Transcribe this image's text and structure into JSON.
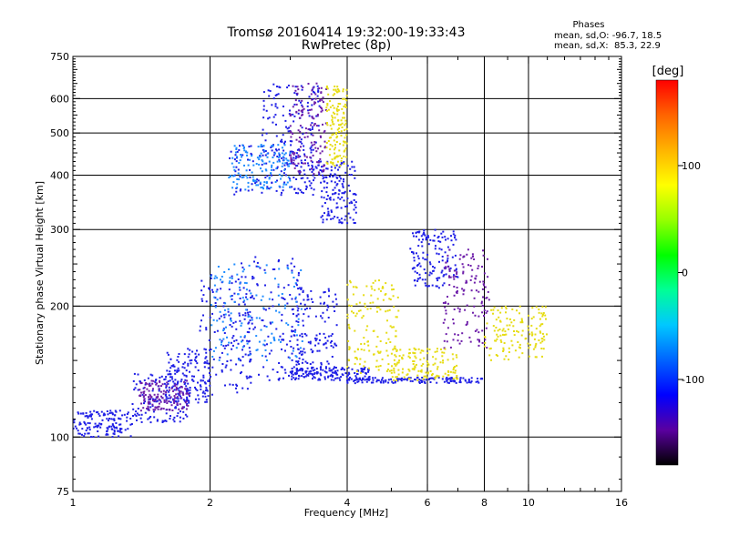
{
  "chart_data": {
    "type": "scatter",
    "title": "Tromsø 20160414 19:32:00-19:33:43",
    "subtitle": "RwPretec (8p)",
    "xlabel": "Frequency [MHz]",
    "ylabel": "Stationary phase Virtual Height [km]",
    "x_scale": "log",
    "y_scale": "log",
    "xlim": [
      1,
      16
    ],
    "ylim": [
      75,
      750
    ],
    "x_ticks": [
      1,
      2,
      4,
      6,
      8,
      10,
      16
    ],
    "y_ticks": [
      75,
      100,
      200,
      300,
      400,
      500,
      600,
      750
    ],
    "grid": true,
    "phase_info": {
      "heading": "Phases",
      "line_o": "mean, sd,O: -96.7, 18.5",
      "line_x": "mean, sd,X:  85.3, 22.9"
    },
    "colorbar": {
      "label": "[deg]",
      "range": [
        -180,
        180
      ],
      "ticks": [
        100,
        0,
        -100
      ],
      "colors": [
        "#000000",
        "#5a00a0",
        "#0000ff",
        "#0064ff",
        "#00c8ff",
        "#00ff96",
        "#00ff00",
        "#96ff00",
        "#ffff00",
        "#ffb400",
        "#ff6400",
        "#ff0000"
      ]
    },
    "series": [
      {
        "phase": -100,
        "color": "#1e1ee6",
        "clusters": [
          {
            "fx": [
              1.0,
              1.35
            ],
            "hy": [
              100,
              115
            ]
          },
          {
            "fx": [
              1.35,
              1.8
            ],
            "hy": [
              108,
              140
            ]
          },
          {
            "fx": [
              1.6,
              2.0
            ],
            "hy": [
              120,
              160
            ]
          },
          {
            "fx": [
              1.9,
              2.5
            ],
            "hy": [
              125,
              240
            ]
          },
          {
            "fx": [
              2.3,
              3.2
            ],
            "hy": [
              135,
              260
            ]
          },
          {
            "fx": [
              3.0,
              3.8
            ],
            "hy": [
              140,
              220
            ]
          },
          {
            "fx": [
              3.0,
              4.5
            ],
            "hy": [
              135,
              145
            ]
          },
          {
            "fx": [
              4.0,
              8.0
            ],
            "hy": [
              133,
              137
            ]
          },
          {
            "fx": [
              2.2,
              3.4
            ],
            "hy": [
              360,
              470
            ]
          },
          {
            "fx": [
              2.6,
              3.5
            ],
            "hy": [
              400,
              650
            ]
          },
          {
            "fx": [
              3.5,
              4.2
            ],
            "hy": [
              310,
              430
            ]
          },
          {
            "fx": [
              5.5,
              7.0
            ],
            "hy": [
              220,
              300
            ]
          }
        ]
      },
      {
        "phase": -60,
        "color": "#1e8cff",
        "clusters": [
          {
            "fx": [
              2.2,
              3.0
            ],
            "hy": [
              370,
              470
            ]
          },
          {
            "fx": [
              2.0,
              3.2
            ],
            "hy": [
              150,
              250
            ]
          }
        ]
      },
      {
        "phase": -130,
        "color": "#6e1eaa",
        "clusters": [
          {
            "fx": [
              3.0,
              3.6
            ],
            "hy": [
              400,
              650
            ]
          },
          {
            "fx": [
              1.4,
              1.8
            ],
            "hy": [
              115,
              135
            ]
          },
          {
            "fx": [
              6.5,
              8.2
            ],
            "hy": [
              160,
              270
            ]
          }
        ]
      },
      {
        "phase": 110,
        "color": "#e6dc14",
        "clusters": [
          {
            "fx": [
              3.6,
              4.0
            ],
            "hy": [
              420,
              640
            ]
          },
          {
            "fx": [
              4.0,
              5.2
            ],
            "hy": [
              140,
              230
            ]
          },
          {
            "fx": [
              5.0,
              7.0
            ],
            "hy": [
              135,
              160
            ]
          },
          {
            "fx": [
              8.0,
              11.0
            ],
            "hy": [
              150,
              200
            ]
          }
        ]
      }
    ]
  }
}
